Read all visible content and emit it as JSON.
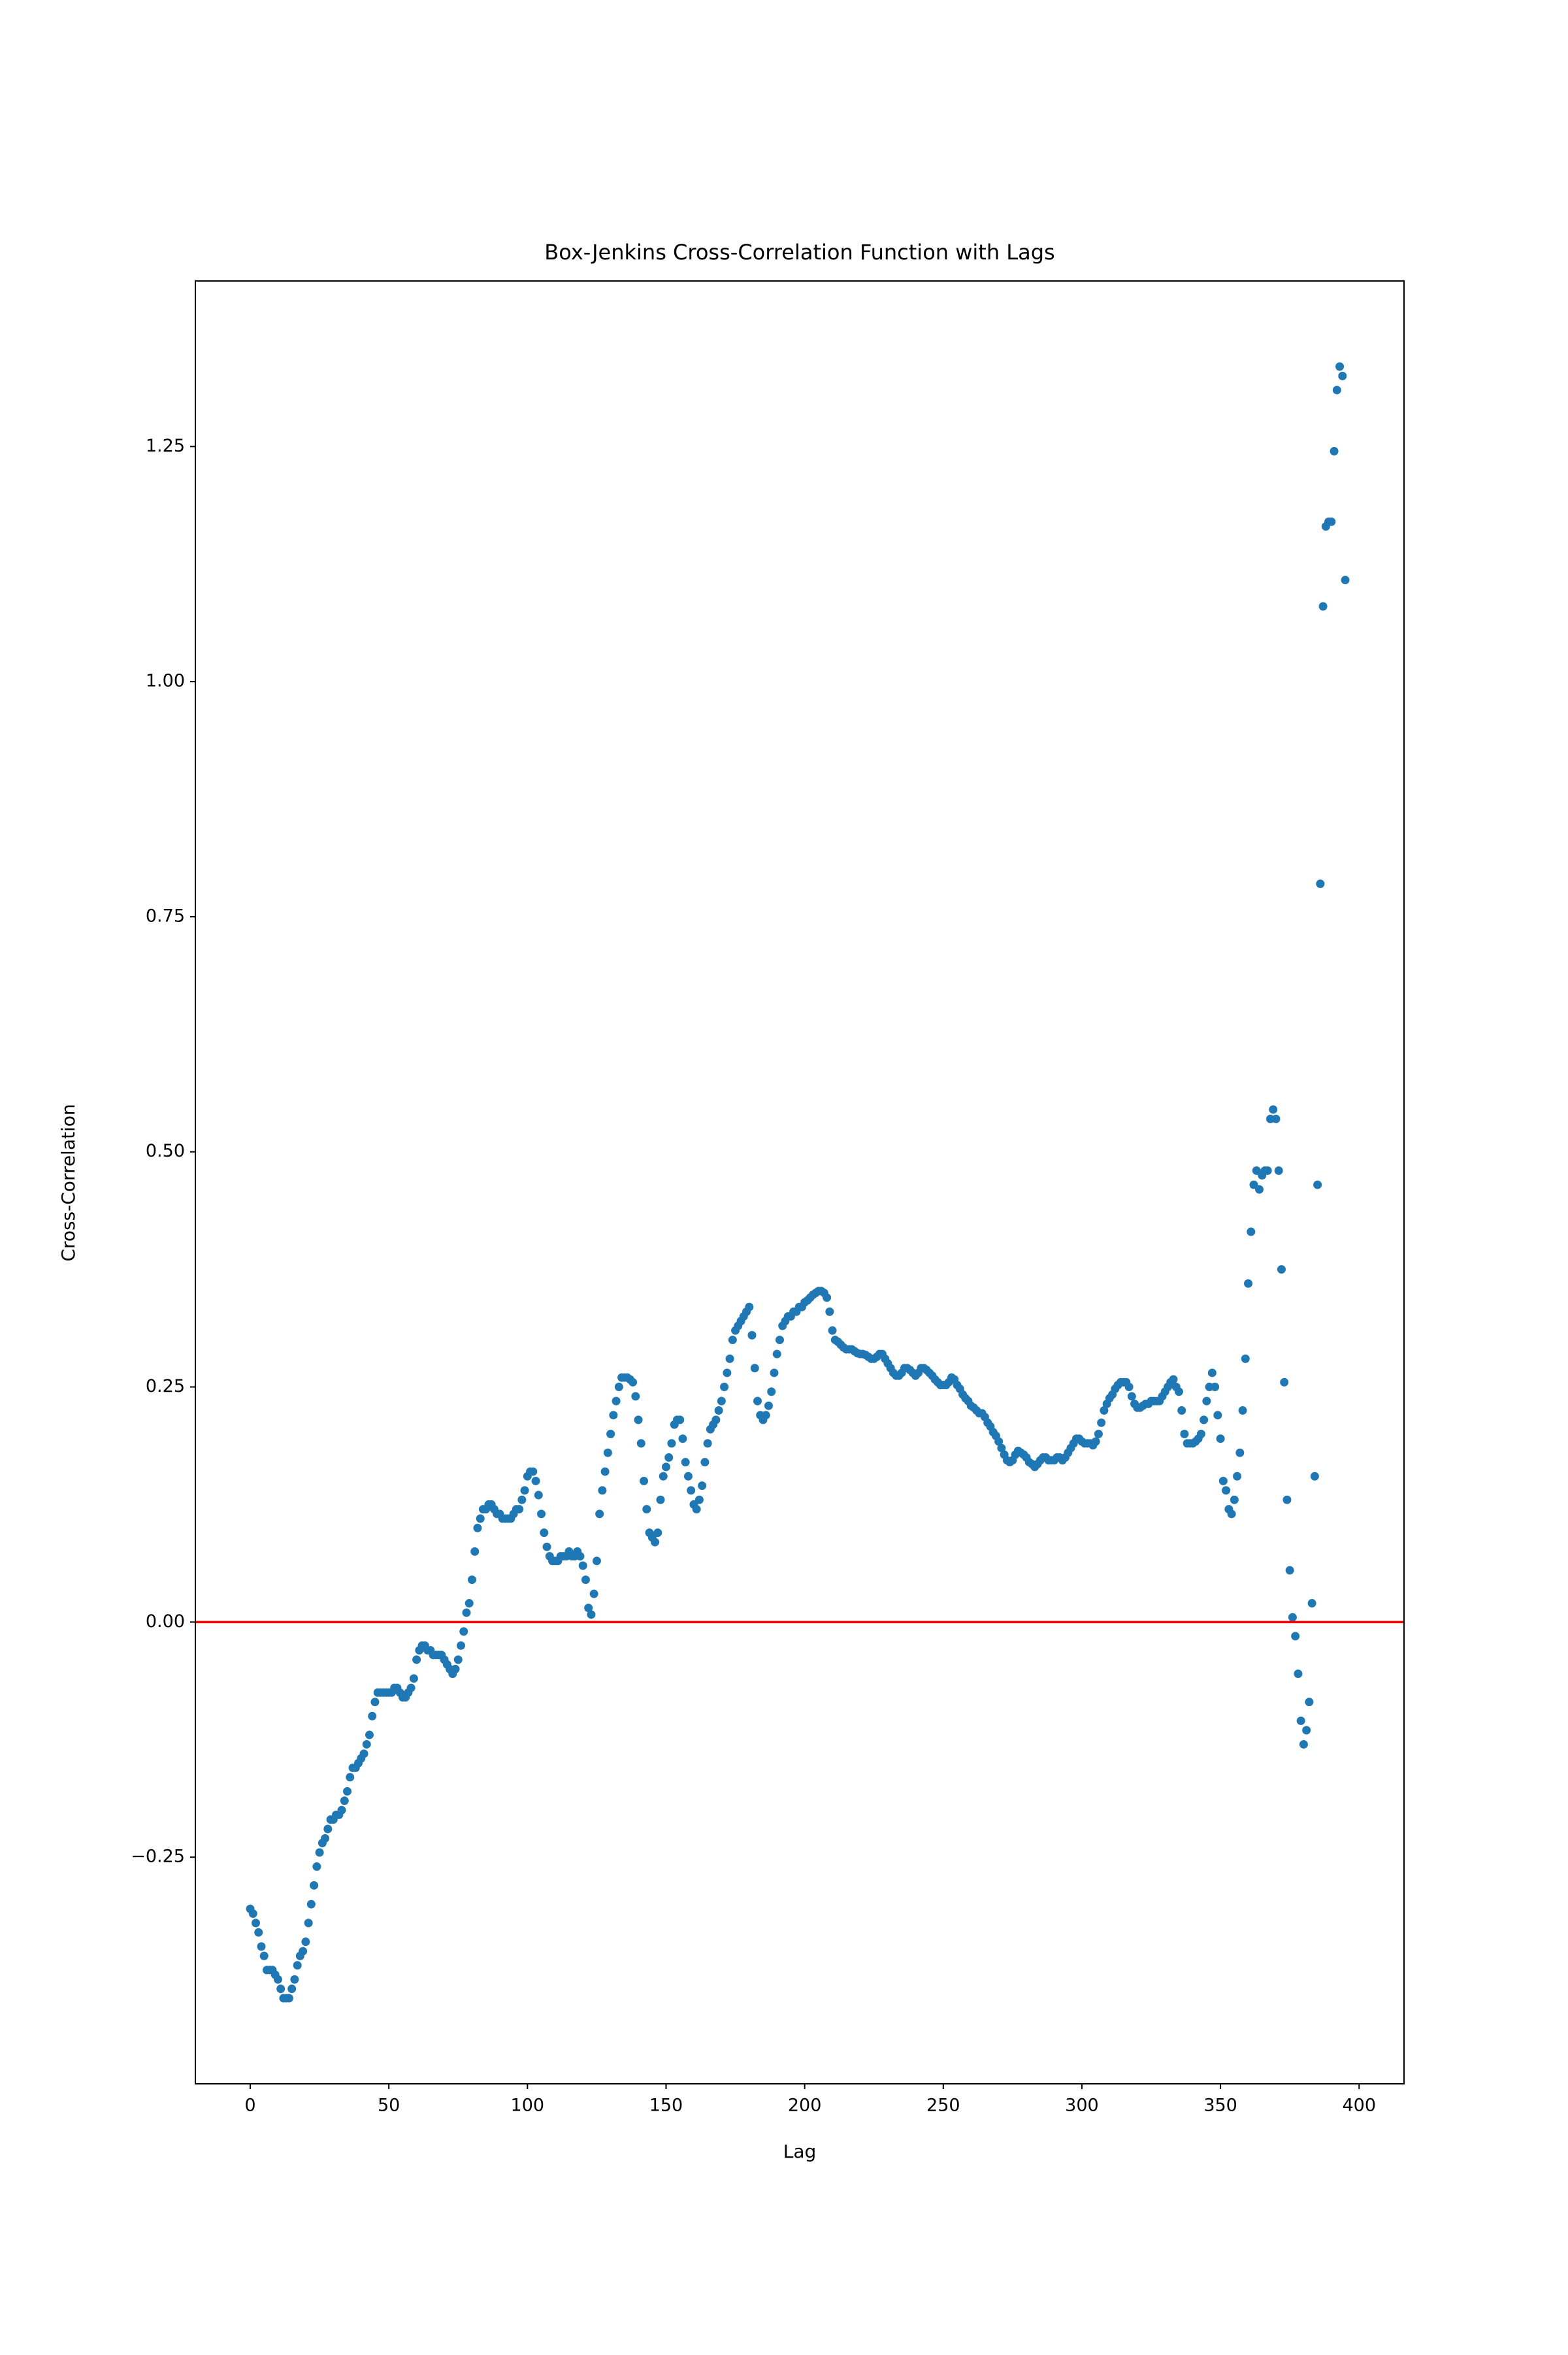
{
  "chart_data": {
    "type": "scatter",
    "title": "Box-Jenkins Cross-Correlation Function with Lags",
    "x_label": "Lag",
    "y_label": "Cross-Correlation",
    "color": "#1f77b4",
    "reference_line": {
      "y": 0,
      "color": "#ff0000"
    },
    "xlim": [
      -19.8,
      416.2
    ],
    "ylim": [
      -0.491,
      1.426
    ],
    "xticks": [
      0,
      50,
      100,
      150,
      200,
      250,
      300,
      350,
      400
    ],
    "yticks": [
      {
        "value": -0.25,
        "label": "−0.25"
      },
      {
        "value": 0,
        "label": "0.00"
      },
      {
        "value": 0.25,
        "label": "0.25"
      },
      {
        "value": 0.5,
        "label": "0.50"
      },
      {
        "value": 0.75,
        "label": "0.75"
      },
      {
        "value": 1.0,
        "label": "1.00"
      },
      {
        "value": 1.25,
        "label": "1.25"
      }
    ],
    "x": [
      0,
      1,
      2,
      3,
      4,
      5,
      6,
      7,
      8,
      9,
      10,
      11,
      12,
      13,
      14,
      15,
      16,
      17,
      18,
      19,
      20,
      21,
      22,
      23,
      24,
      25,
      26,
      27,
      28,
      29,
      30,
      31,
      32,
      33,
      34,
      35,
      36,
      37,
      38,
      39,
      40,
      41,
      42,
      43,
      44,
      45,
      46,
      47,
      48,
      49,
      50,
      51,
      52,
      53,
      54,
      55,
      56,
      57,
      58,
      59,
      60,
      61,
      62,
      63,
      64,
      65,
      66,
      67,
      68,
      69,
      70,
      71,
      72,
      73,
      74,
      75,
      76,
      77,
      78,
      79,
      80,
      81,
      82,
      83,
      84,
      85,
      86,
      87,
      88,
      89,
      90,
      91,
      92,
      93,
      94,
      95,
      96,
      97,
      98,
      99,
      100,
      101,
      102,
      103,
      104,
      105,
      106,
      107,
      108,
      109,
      110,
      111,
      112,
      113,
      114,
      115,
      116,
      117,
      118,
      119,
      120,
      121,
      122,
      123,
      124,
      125,
      126,
      127,
      128,
      129,
      130,
      131,
      132,
      133,
      134,
      135,
      136,
      137,
      138,
      139,
      140,
      141,
      142,
      143,
      144,
      145,
      146,
      147,
      148,
      149,
      150,
      151,
      152,
      153,
      154,
      155,
      156,
      157,
      158,
      159,
      160,
      161,
      162,
      163,
      164,
      165,
      166,
      167,
      168,
      169,
      170,
      171,
      172,
      173,
      174,
      175,
      176,
      177,
      178,
      179,
      180,
      181,
      182,
      183,
      184,
      185,
      186,
      187,
      188,
      189,
      190,
      191,
      192,
      193,
      194,
      195,
      196,
      197,
      198,
      199,
      200,
      201,
      202,
      203,
      204,
      205,
      206,
      207,
      208,
      209,
      210,
      211,
      212,
      213,
      214,
      215,
      216,
      217,
      218,
      219,
      220,
      221,
      222,
      223,
      224,
      225,
      226,
      227,
      228,
      229,
      230,
      231,
      232,
      233,
      234,
      235,
      236,
      237,
      238,
      239,
      240,
      241,
      242,
      243,
      244,
      245,
      246,
      247,
      248,
      249,
      250,
      251,
      252,
      253,
      254,
      255,
      256,
      257,
      258,
      259,
      260,
      261,
      262,
      263,
      264,
      265,
      266,
      267,
      268,
      269,
      270,
      271,
      272,
      273,
      274,
      275,
      276,
      277,
      278,
      279,
      280,
      281,
      282,
      283,
      284,
      285,
      286,
      287,
      288,
      289,
      290,
      291,
      292,
      293,
      294,
      295,
      296,
      297,
      298,
      299,
      300,
      301,
      302,
      303,
      304,
      305,
      306,
      307,
      308,
      309,
      310,
      311,
      312,
      313,
      314,
      315,
      316,
      317,
      318,
      319,
      320,
      321,
      322,
      323,
      324,
      325,
      326,
      327,
      328,
      329,
      330,
      331,
      332,
      333,
      334,
      335,
      336,
      337,
      338,
      339,
      340,
      341,
      342,
      343,
      344,
      345,
      346,
      347,
      348,
      349,
      350,
      351,
      352,
      353,
      354,
      355,
      356,
      357,
      358,
      359,
      360,
      361,
      362,
      363,
      364,
      365,
      366,
      367,
      368,
      369,
      370,
      371,
      372,
      373,
      374,
      375,
      376,
      377,
      378,
      379,
      380,
      381,
      382,
      383,
      384,
      385,
      386,
      387,
      388,
      389,
      390,
      391,
      392,
      393,
      394,
      395
    ],
    "values": [
      -0.305,
      -0.31,
      -0.32,
      -0.33,
      -0.345,
      -0.355,
      -0.37,
      -0.37,
      -0.37,
      -0.375,
      -0.38,
      -0.39,
      -0.4,
      -0.4,
      -0.4,
      -0.39,
      -0.38,
      -0.365,
      -0.355,
      -0.35,
      -0.34,
      -0.32,
      -0.3,
      -0.28,
      -0.26,
      -0.245,
      -0.235,
      -0.23,
      -0.22,
      -0.21,
      -0.21,
      -0.205,
      -0.205,
      -0.2,
      -0.19,
      -0.18,
      -0.165,
      -0.155,
      -0.155,
      -0.15,
      -0.145,
      -0.14,
      -0.13,
      -0.12,
      -0.1,
      -0.085,
      -0.075,
      -0.075,
      -0.075,
      -0.075,
      -0.075,
      -0.075,
      -0.07,
      -0.07,
      -0.075,
      -0.08,
      -0.08,
      -0.075,
      -0.07,
      -0.06,
      -0.04,
      -0.03,
      -0.025,
      -0.025,
      -0.03,
      -0.03,
      -0.035,
      -0.035,
      -0.035,
      -0.035,
      -0.04,
      -0.045,
      -0.05,
      -0.055,
      -0.05,
      -0.04,
      -0.025,
      -0.01,
      0.01,
      0.02,
      0.045,
      0.075,
      0.1,
      0.11,
      0.12,
      0.12,
      0.125,
      0.125,
      0.12,
      0.115,
      0.115,
      0.11,
      0.11,
      0.11,
      0.11,
      0.115,
      0.12,
      0.12,
      0.13,
      0.14,
      0.155,
      0.16,
      0.16,
      0.15,
      0.135,
      0.115,
      0.095,
      0.08,
      0.07,
      0.065,
      0.065,
      0.065,
      0.07,
      0.07,
      0.07,
      0.075,
      0.07,
      0.07,
      0.075,
      0.07,
      0.06,
      0.045,
      0.015,
      0.008,
      0.03,
      0.065,
      0.115,
      0.14,
      0.16,
      0.18,
      0.2,
      0.22,
      0.235,
      0.25,
      0.26,
      0.26,
      0.26,
      0.258,
      0.255,
      0.24,
      0.215,
      0.19,
      0.15,
      0.12,
      0.095,
      0.09,
      0.085,
      0.095,
      0.13,
      0.155,
      0.165,
      0.175,
      0.19,
      0.21,
      0.215,
      0.215,
      0.195,
      0.17,
      0.155,
      0.14,
      0.125,
      0.12,
      0.13,
      0.145,
      0.17,
      0.19,
      0.205,
      0.21,
      0.215,
      0.225,
      0.235,
      0.25,
      0.265,
      0.28,
      0.3,
      0.31,
      0.315,
      0.32,
      0.325,
      0.33,
      0.335,
      0.305,
      0.27,
      0.235,
      0.22,
      0.215,
      0.22,
      0.23,
      0.245,
      0.265,
      0.285,
      0.3,
      0.315,
      0.32,
      0.325,
      0.325,
      0.33,
      0.33,
      0.335,
      0.335,
      0.34,
      0.342,
      0.345,
      0.348,
      0.35,
      0.352,
      0.352,
      0.35,
      0.345,
      0.33,
      0.31,
      0.3,
      0.298,
      0.295,
      0.292,
      0.29,
      0.29,
      0.29,
      0.288,
      0.286,
      0.285,
      0.285,
      0.284,
      0.282,
      0.28,
      0.28,
      0.282,
      0.285,
      0.285,
      0.28,
      0.275,
      0.27,
      0.265,
      0.262,
      0.262,
      0.265,
      0.27,
      0.27,
      0.268,
      0.265,
      0.262,
      0.265,
      0.27,
      0.27,
      0.268,
      0.265,
      0.262,
      0.258,
      0.255,
      0.252,
      0.252,
      0.252,
      0.255,
      0.26,
      0.258,
      0.252,
      0.248,
      0.242,
      0.238,
      0.235,
      0.23,
      0.228,
      0.225,
      0.222,
      0.222,
      0.218,
      0.212,
      0.208,
      0.202,
      0.198,
      0.192,
      0.185,
      0.178,
      0.172,
      0.17,
      0.172,
      0.178,
      0.182,
      0.18,
      0.178,
      0.175,
      0.17,
      0.168,
      0.165,
      0.168,
      0.172,
      0.175,
      0.175,
      0.172,
      0.172,
      0.172,
      0.175,
      0.175,
      0.172,
      0.175,
      0.18,
      0.185,
      0.19,
      0.195,
      0.195,
      0.192,
      0.19,
      0.19,
      0.19,
      0.188,
      0.192,
      0.2,
      0.212,
      0.225,
      0.232,
      0.238,
      0.242,
      0.248,
      0.252,
      0.255,
      0.255,
      0.255,
      0.25,
      0.24,
      0.232,
      0.228,
      0.228,
      0.23,
      0.232,
      0.232,
      0.235,
      0.235,
      0.235,
      0.235,
      0.24,
      0.245,
      0.25,
      0.255,
      0.258,
      0.25,
      0.245,
      0.225,
      0.2,
      0.19,
      0.19,
      0.19,
      0.192,
      0.195,
      0.2,
      0.215,
      0.235,
      0.25,
      0.265,
      0.25,
      0.22,
      0.195,
      0.15,
      0.14,
      0.12,
      0.115,
      0.13,
      0.155,
      0.18,
      0.225,
      0.28,
      0.36,
      0.415,
      0.465,
      0.48,
      0.46,
      0.475,
      0.48,
      0.48,
      0.535,
      0.545,
      0.535,
      0.48,
      0.375,
      0.255,
      0.13,
      0.055,
      0.005,
      -0.015,
      -0.055,
      -0.105,
      -0.13,
      -0.115,
      -0.085,
      0.02,
      0.155,
      0.465,
      0.785,
      1.08,
      1.165,
      1.17,
      1.17,
      1.245,
      1.31,
      1.335,
      1.325,
      1.108
    ]
  }
}
